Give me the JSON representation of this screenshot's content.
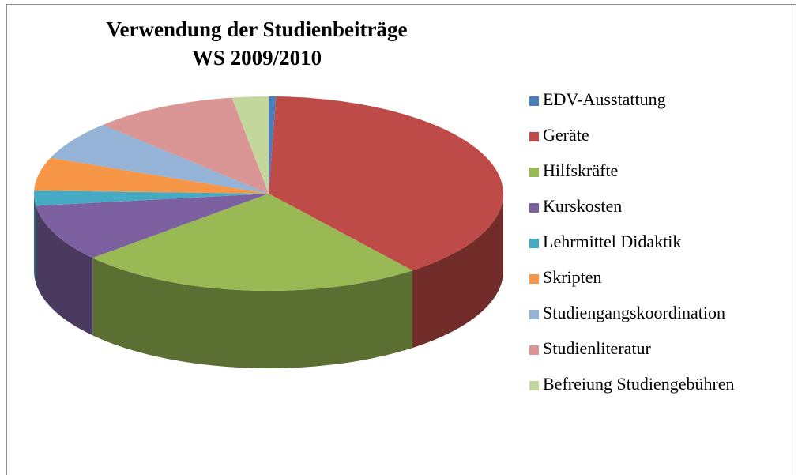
{
  "chart_data": {
    "type": "pie",
    "title": "Verwendung der Studienbeiträge",
    "subtitle": "WS 2009/2010",
    "categories": [
      "EDV-Ausstattung",
      "Geräte",
      "Hilfskräfte",
      "Kurskosten",
      "Lehrmittel Didaktik",
      "Skripten",
      "Studiengangskoordination",
      "Studienliteratur",
      "Befreiung Studiengebühren"
    ],
    "values": [
      0.5,
      39,
      24,
      9.5,
      2.5,
      5.5,
      6.5,
      10,
      2.5
    ],
    "colors": [
      "#4a7ebb",
      "#be4b48",
      "#98b954",
      "#7d60a0",
      "#46aac5",
      "#f79646",
      "#95b3d7",
      "#d99694",
      "#c3d69b"
    ],
    "legend": "right"
  }
}
